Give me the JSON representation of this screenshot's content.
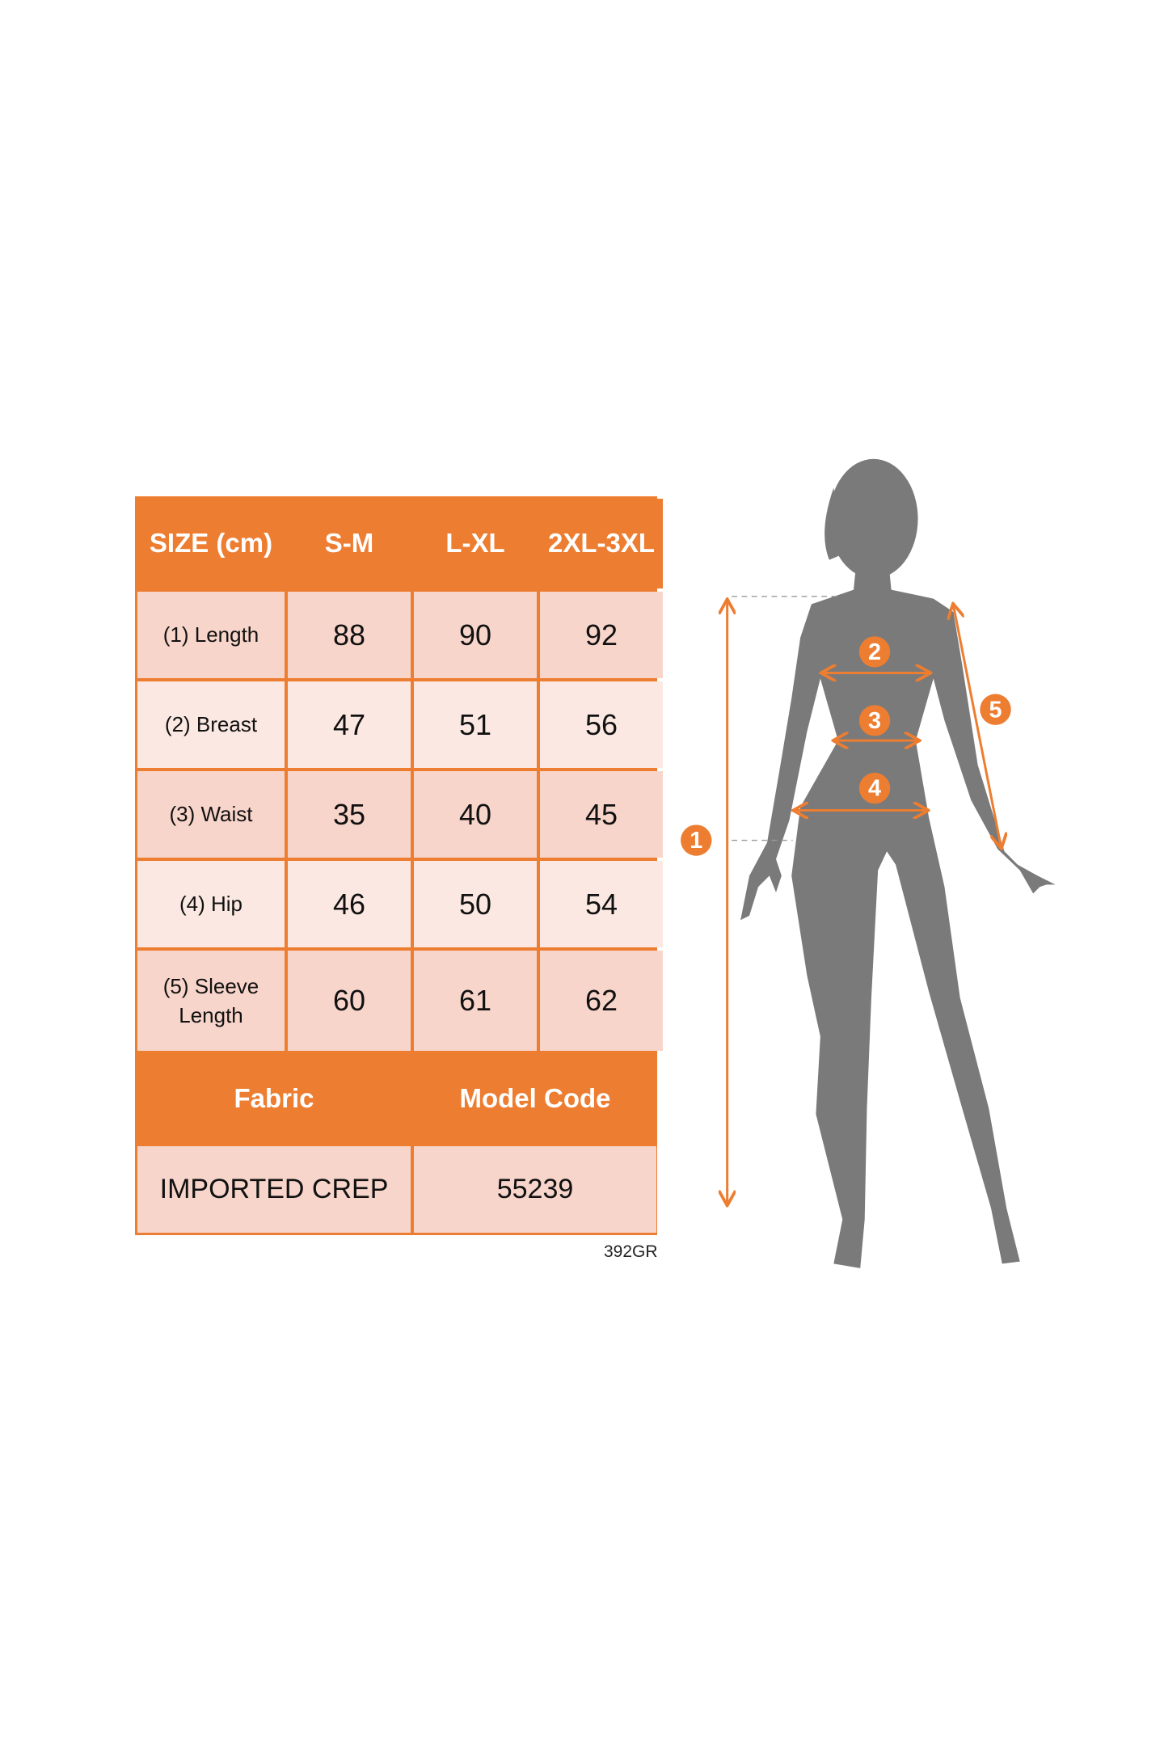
{
  "colors": {
    "accent": "#ED7D31",
    "cell_dark": "#F8D5CB",
    "cell_light": "#FBE8E2",
    "silhouette": "#7A7A7A"
  },
  "table": {
    "header": [
      "SIZE (cm)",
      "S-M",
      "L-XL",
      "2XL-3XL"
    ],
    "rows": [
      {
        "label": "(1) Length",
        "values": [
          "88",
          "90",
          "92"
        ]
      },
      {
        "label": "(2) Breast",
        "values": [
          "47",
          "51",
          "56"
        ]
      },
      {
        "label": "(3) Waist",
        "values": [
          "35",
          "40",
          "45"
        ]
      },
      {
        "label": "(4) Hip",
        "values": [
          "46",
          "50",
          "54"
        ]
      },
      {
        "label": "(5) Sleeve Length",
        "values": [
          "60",
          "61",
          "62"
        ]
      }
    ],
    "info_header": [
      "Fabric",
      "Model Code"
    ],
    "info_values": [
      "IMPORTED CREP",
      "55239"
    ]
  },
  "product_code": "392GR",
  "figure": {
    "markers": [
      "1",
      "2",
      "3",
      "4",
      "5"
    ]
  }
}
